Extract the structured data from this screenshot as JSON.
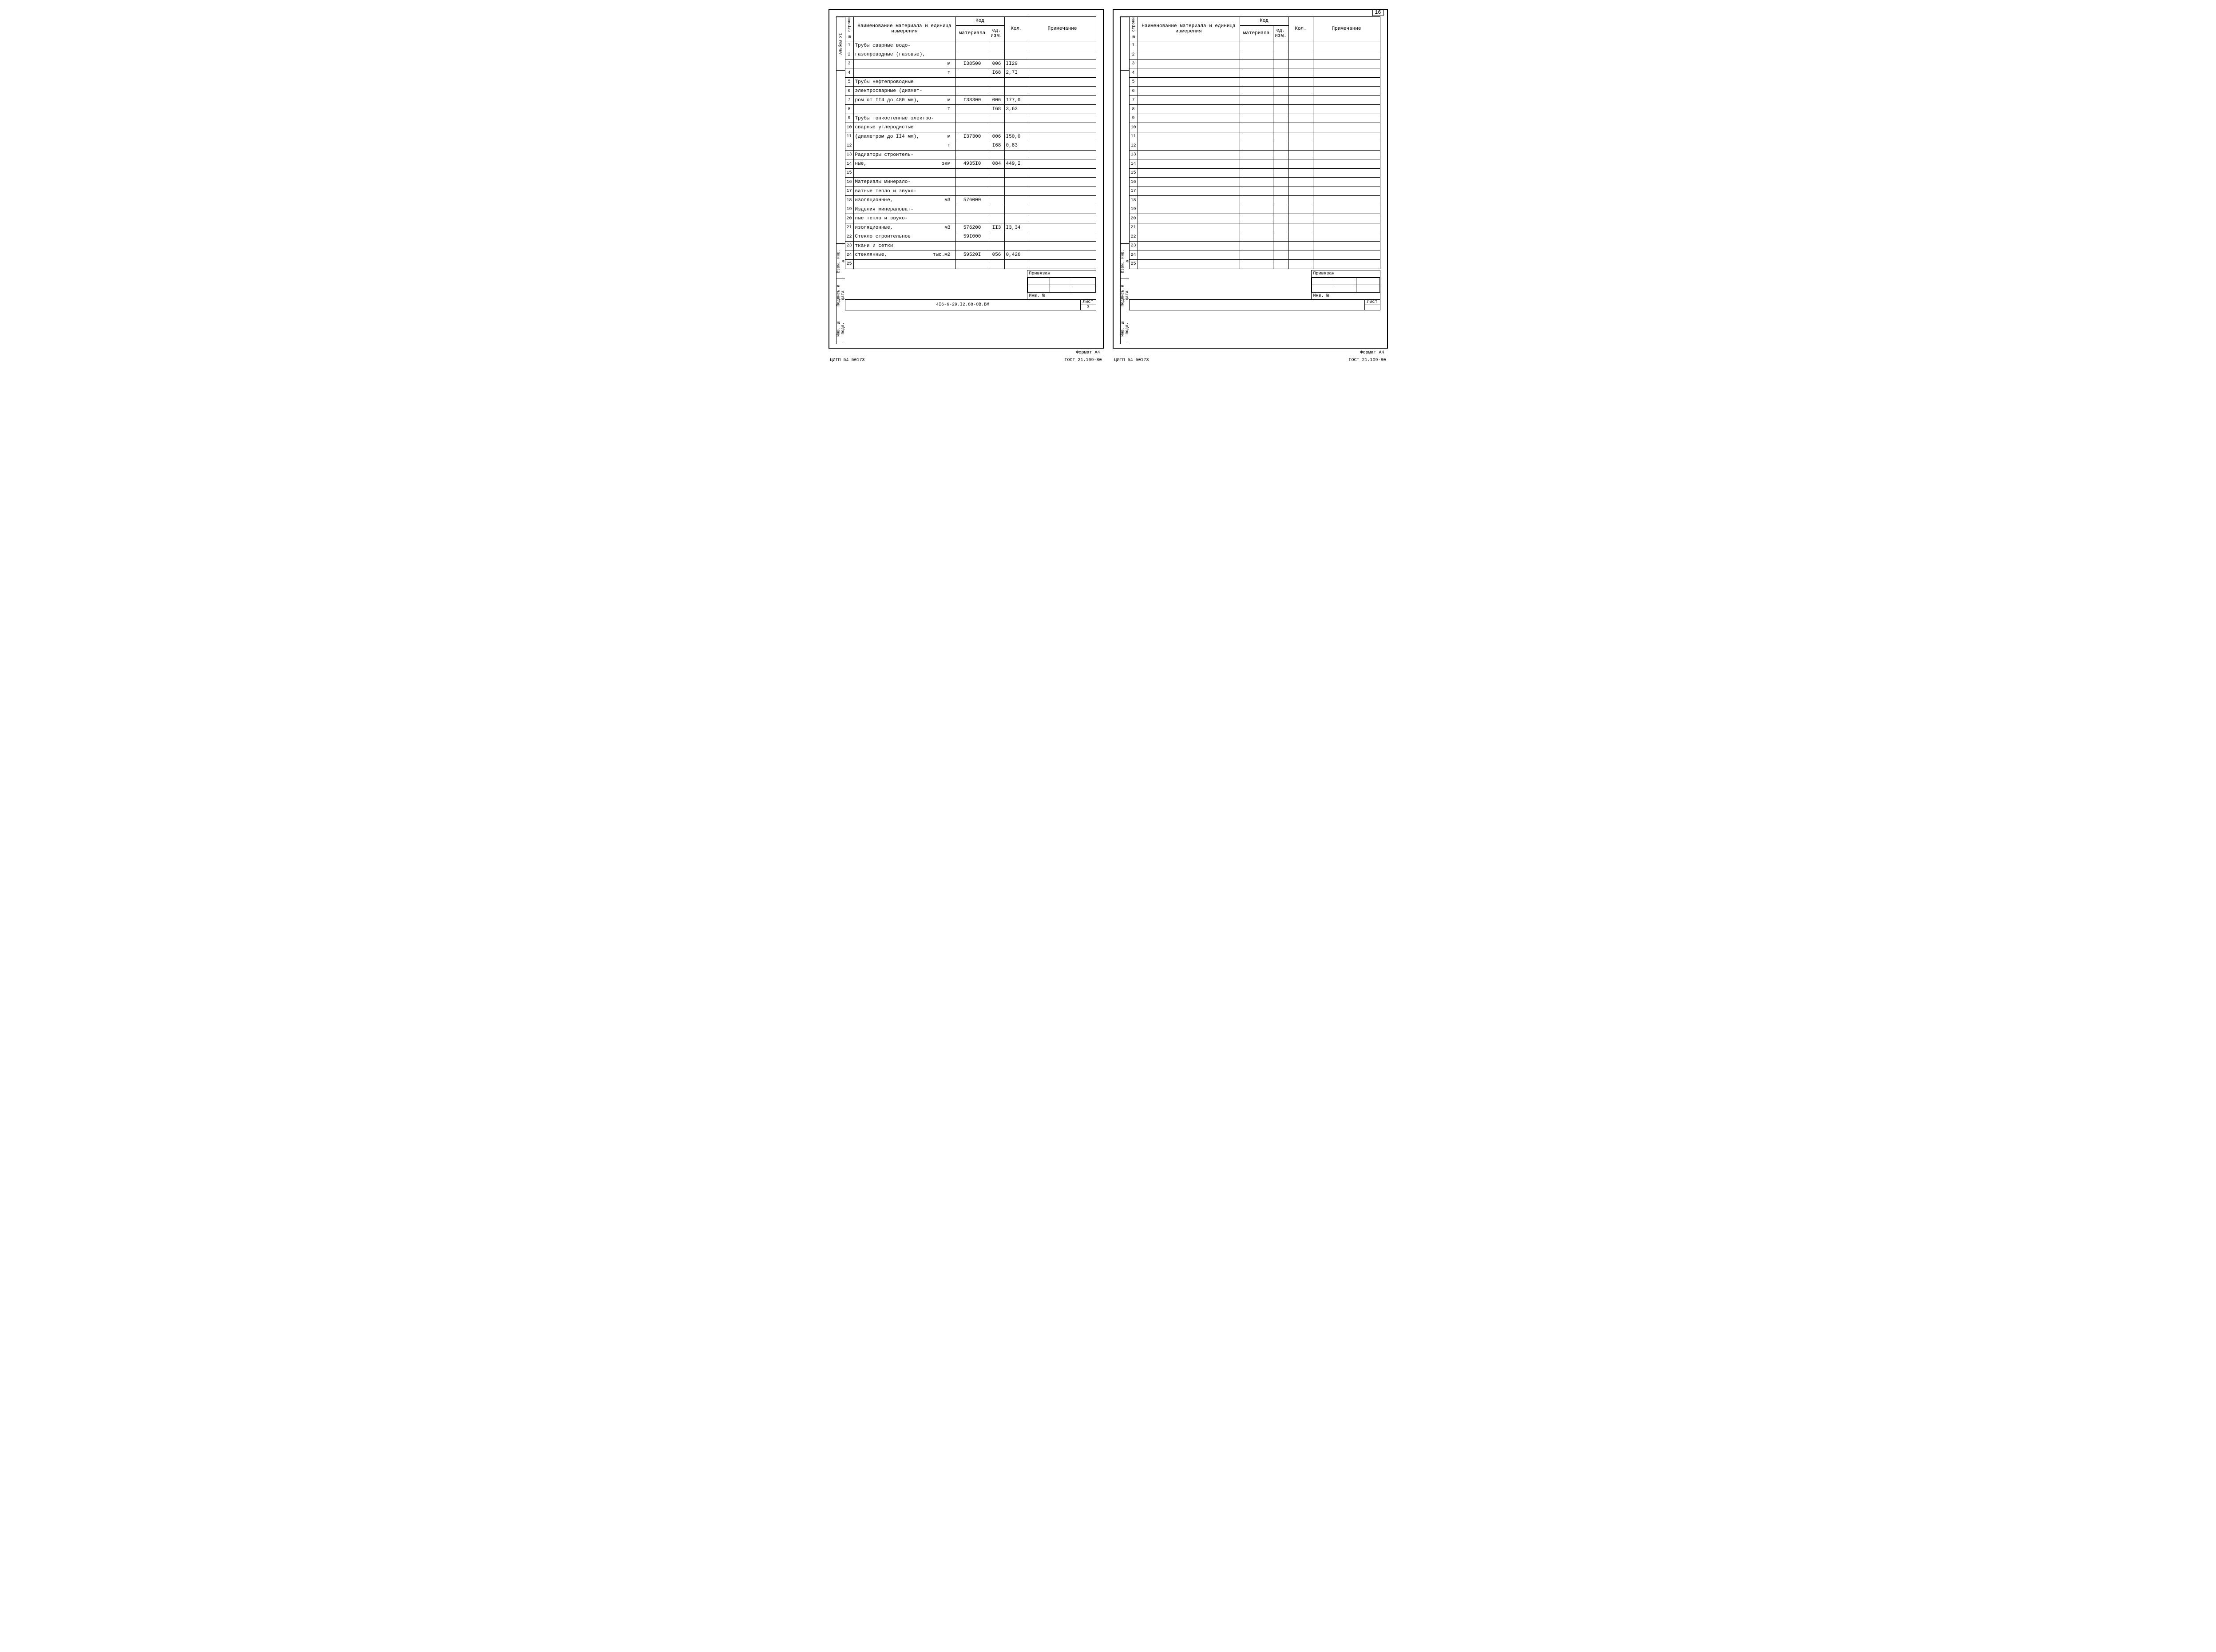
{
  "page_number_right": "16",
  "headers": {
    "n_stroki": "№ строки",
    "name": "Наименование материала и единица измерения",
    "kod": "Код",
    "material": "материала",
    "ed_izm": "ед. изм.",
    "kol": "Кол.",
    "prim": "Примечание"
  },
  "side_labels": {
    "album": "Альбом УI",
    "vzam": "Взам. инв. №",
    "podpis": "Подпись и дата",
    "inv": "Инв. № подл."
  },
  "rows_left": [
    {
      "n": "1",
      "name": "Трубы сварные водо-",
      "mat": "",
      "ed": "",
      "kol": "",
      "prim": ""
    },
    {
      "n": "2",
      "name": "газопроводные (газовые),",
      "mat": "",
      "ed": "",
      "kol": "",
      "prim": ""
    },
    {
      "n": "3",
      "name": "<span class='unit'>м</span>",
      "mat": "I38500",
      "ed": "006",
      "kol": "II29",
      "prim": ""
    },
    {
      "n": "4",
      "name": "<span class='unit'>т</span>",
      "mat": "",
      "ed": "I68",
      "kol": "2,7I",
      "prim": ""
    },
    {
      "n": "5",
      "name": "Трубы нефтепроводные",
      "mat": "",
      "ed": "",
      "kol": "",
      "prim": ""
    },
    {
      "n": "6",
      "name": "электросварные (диамет-",
      "mat": "",
      "ed": "",
      "kol": "",
      "prim": ""
    },
    {
      "n": "7",
      "name": "ром от II4 до 480 мм),<span class='unit'>м</span>",
      "mat": "I38300",
      "ed": "006",
      "kol": "I77,0",
      "prim": ""
    },
    {
      "n": "8",
      "name": "<span class='unit'>т</span>",
      "mat": "",
      "ed": "I68",
      "kol": "3,63",
      "prim": ""
    },
    {
      "n": "9",
      "name": "Трубы тонкостенные электро-",
      "mat": "",
      "ed": "",
      "kol": "",
      "prim": ""
    },
    {
      "n": "10",
      "name": "сварные углеродистые",
      "mat": "",
      "ed": "",
      "kol": "",
      "prim": ""
    },
    {
      "n": "11",
      "name": "(диаметром до II4 мм),<span class='unit'>м</span>",
      "mat": "I37300",
      "ed": "006",
      "kol": "I50,0",
      "prim": ""
    },
    {
      "n": "12",
      "name": "<span class='unit'>т</span>",
      "mat": "",
      "ed": "I68",
      "kol": "0,83",
      "prim": ""
    },
    {
      "n": "13",
      "name": "Радиаторы строитель-",
      "mat": "",
      "ed": "",
      "kol": "",
      "prim": ""
    },
    {
      "n": "14",
      "name": "ные,<span class='unit'>экм</span>",
      "mat": "4935I0",
      "ed": "084",
      "kol": "449,I",
      "prim": ""
    },
    {
      "n": "15",
      "name": "",
      "mat": "",
      "ed": "",
      "kol": "",
      "prim": ""
    },
    {
      "n": "16",
      "name": "Материалы минерало-",
      "mat": "",
      "ed": "",
      "kol": "",
      "prim": ""
    },
    {
      "n": "17",
      "name": "ватные тепло и звуко-",
      "mat": "",
      "ed": "",
      "kol": "",
      "prim": ""
    },
    {
      "n": "18",
      "name": "изоляционные,<span class='unit'>м3</span>",
      "mat": "576000",
      "ed": "",
      "kol": "",
      "prim": ""
    },
    {
      "n": "19",
      "name": "Изделия минераловат-",
      "mat": "",
      "ed": "",
      "kol": "",
      "prim": ""
    },
    {
      "n": "20",
      "name": "ные тепло и звуко-",
      "mat": "",
      "ed": "",
      "kol": "",
      "prim": ""
    },
    {
      "n": "21",
      "name": "изоляционные,<span class='unit'>м3</span>",
      "mat": "576200",
      "ed": "II3",
      "kol": "I3,34",
      "prim": ""
    },
    {
      "n": "22",
      "name": "Стекло строительное",
      "mat": "59I000",
      "ed": "",
      "kol": "",
      "prim": ""
    },
    {
      "n": "23",
      "name": "ткани и сетки",
      "mat": "",
      "ed": "",
      "kol": "",
      "prim": ""
    },
    {
      "n": "24",
      "name": "стеклянные,<span class='unit'>тыс.м2</span>",
      "mat": "59520I",
      "ed": "056",
      "kol": "0,426",
      "prim": ""
    },
    {
      "n": "25",
      "name": "",
      "mat": "",
      "ed": "",
      "kol": "",
      "prim": ""
    }
  ],
  "rows_right": [
    {
      "n": "1"
    },
    {
      "n": "2"
    },
    {
      "n": "3"
    },
    {
      "n": "4"
    },
    {
      "n": "5"
    },
    {
      "n": "6"
    },
    {
      "n": "7"
    },
    {
      "n": "8"
    },
    {
      "n": "9"
    },
    {
      "n": "10"
    },
    {
      "n": "11"
    },
    {
      "n": "12"
    },
    {
      "n": "13"
    },
    {
      "n": "14"
    },
    {
      "n": "15"
    },
    {
      "n": "16"
    },
    {
      "n": "17"
    },
    {
      "n": "18"
    },
    {
      "n": "19"
    },
    {
      "n": "20"
    },
    {
      "n": "21"
    },
    {
      "n": "22"
    },
    {
      "n": "23"
    },
    {
      "n": "24"
    },
    {
      "n": "25"
    }
  ],
  "title_block": {
    "privyazan": "Привязан",
    "inv_no": "Инв. №",
    "doc_code": "4I6-6-29.I2.88-ОВ.ВМ",
    "list_label": "Лист",
    "list_val": "3"
  },
  "footer": {
    "left": "ЦИТП 54 50173",
    "right": "ГОСТ 21.109-80",
    "format": "Формат А4"
  }
}
